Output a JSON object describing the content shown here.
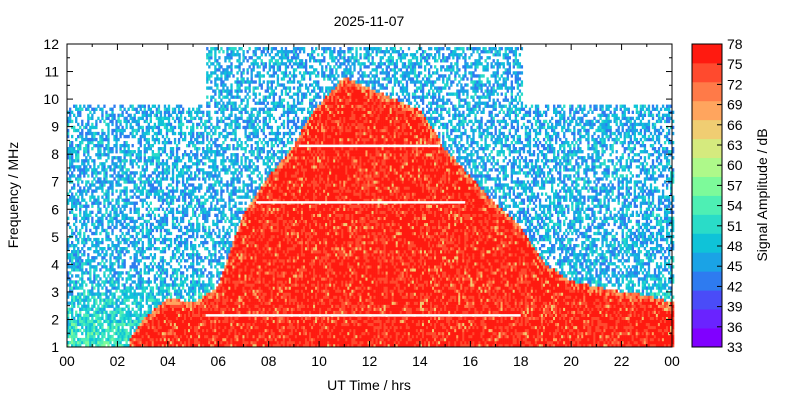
{
  "chart_data": {
    "type": "heatmap",
    "title": "2025-11-07",
    "xlabel": "UT Time / hrs",
    "ylabel": "Frequency / MHz",
    "colorbar_label": "Signal Amplitude / dB",
    "x_ticks": [
      "00",
      "02",
      "04",
      "06",
      "08",
      "10",
      "12",
      "14",
      "16",
      "18",
      "20",
      "22",
      "00"
    ],
    "x_range": [
      0,
      24
    ],
    "y_ticks": [
      1,
      2,
      3,
      4,
      5,
      6,
      7,
      8,
      9,
      10,
      11,
      12
    ],
    "y_range": [
      1,
      12
    ],
    "colorbar_ticks": [
      33,
      36,
      39,
      42,
      45,
      48,
      51,
      54,
      57,
      60,
      63,
      66,
      69,
      72,
      75,
      78
    ],
    "colorbar_range": [
      33,
      78
    ],
    "colorbar_colors": [
      "#8000ff",
      "#6a23ff",
      "#4a4cf8",
      "#2e7bf0",
      "#1aa3e6",
      "#0fc3d8",
      "#2adcc8",
      "#4eefb4",
      "#7dfa9a",
      "#aef98a",
      "#d5ea7e",
      "#f0cd72",
      "#ffa55e",
      "#ff7a48",
      "#ff4a2e",
      "#ff1a10"
    ],
    "background_level_db": 46,
    "peak_level_db": 78,
    "band_edges": [
      {
        "t": 2.5,
        "fmax": 1.3
      },
      {
        "t": 3.0,
        "fmax": 2.0
      },
      {
        "t": 4.0,
        "fmax": 2.8
      },
      {
        "t": 5.0,
        "fmax": 2.6
      },
      {
        "t": 6.0,
        "fmax": 3.2
      },
      {
        "t": 6.5,
        "fmax": 4.6
      },
      {
        "t": 7.0,
        "fmax": 5.8
      },
      {
        "t": 8.0,
        "fmax": 7.2
      },
      {
        "t": 9.0,
        "fmax": 8.3
      },
      {
        "t": 9.5,
        "fmax": 9.2
      },
      {
        "t": 10.0,
        "fmax": 9.8
      },
      {
        "t": 11.0,
        "fmax": 10.8
      },
      {
        "t": 12.0,
        "fmax": 10.4
      },
      {
        "t": 13.0,
        "fmax": 10.0
      },
      {
        "t": 14.0,
        "fmax": 9.6
      },
      {
        "t": 15.0,
        "fmax": 8.2
      },
      {
        "t": 16.0,
        "fmax": 7.2
      },
      {
        "t": 17.0,
        "fmax": 6.2
      },
      {
        "t": 18.0,
        "fmax": 5.4
      },
      {
        "t": 19.0,
        "fmax": 4.0
      },
      {
        "t": 20.0,
        "fmax": 3.4
      },
      {
        "t": 21.0,
        "fmax": 3.2
      },
      {
        "t": 22.0,
        "fmax": 3.0
      },
      {
        "t": 23.0,
        "fmax": 2.9
      },
      {
        "t": 24.0,
        "fmax": 2.6
      }
    ],
    "noise_ceiling_mhz": 9.8,
    "extended_noise_window": {
      "t_start": 5.5,
      "t_end": 18.0,
      "fmax": 11.9
    },
    "data_gap_lines": [
      {
        "f": 8.3,
        "t_start": 9.2,
        "t_end": 14.8
      },
      {
        "f": 6.25,
        "t_start": 7.5,
        "t_end": 15.8
      },
      {
        "f": 2.15,
        "t_start": 5.5,
        "t_end": 18.0
      }
    ]
  }
}
